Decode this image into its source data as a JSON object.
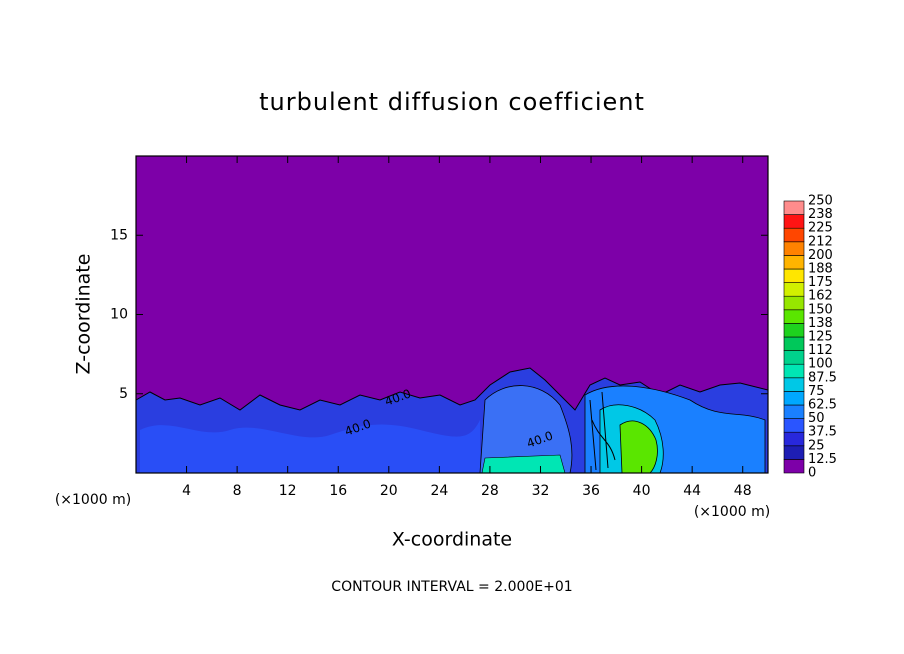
{
  "chart_data": {
    "type": "contour",
    "title": "turbulent diffusion coefficient",
    "x_label": "X-coordinate",
    "y_label": "Z-coordinate",
    "x_unit": "(×1000 m)",
    "x_unit_right": "(×1000 m)",
    "footer": "CONTOUR INTERVAL = 2.000E+01",
    "contour_labels": [
      "40.0",
      "40.0",
      "40.0"
    ],
    "xlim": [
      0,
      50
    ],
    "ylim": [
      0,
      20
    ],
    "xticks": [
      4,
      8,
      12,
      16,
      20,
      24,
      28,
      32,
      36,
      40,
      44,
      48
    ],
    "yticks": [
      5,
      10,
      15
    ],
    "grid": false,
    "colorbar": {
      "levels": [
        0,
        12.5,
        25,
        37.5,
        50,
        62.5,
        75,
        87.5,
        100,
        {
          "value": 112.5,
          "label": "112"
        },
        125,
        {
          "value": 137.5,
          "label": "138"
        },
        150,
        {
          "value": 162.5,
          "label": "162"
        },
        175,
        {
          "value": 187.5,
          "label": "188"
        },
        200,
        {
          "value": 212.5,
          "label": "212"
        },
        225,
        {
          "value": 237.5,
          "label": "238"
        },
        250
      ],
      "colors": [
        "#7d00a8",
        "#1e1eb4",
        "#2828dc",
        "#2a55ff",
        "#1a80ff",
        "#00a8ff",
        "#00c8e6",
        "#00e6b4",
        "#00d28c",
        "#00c85a",
        "#1ed21e",
        "#5ae600",
        "#96e600",
        "#d2f000",
        "#ffe600",
        "#ffb400",
        "#ff8200",
        "#ff4600",
        "#ff1414",
        "#ff8c8c"
      ]
    }
  }
}
